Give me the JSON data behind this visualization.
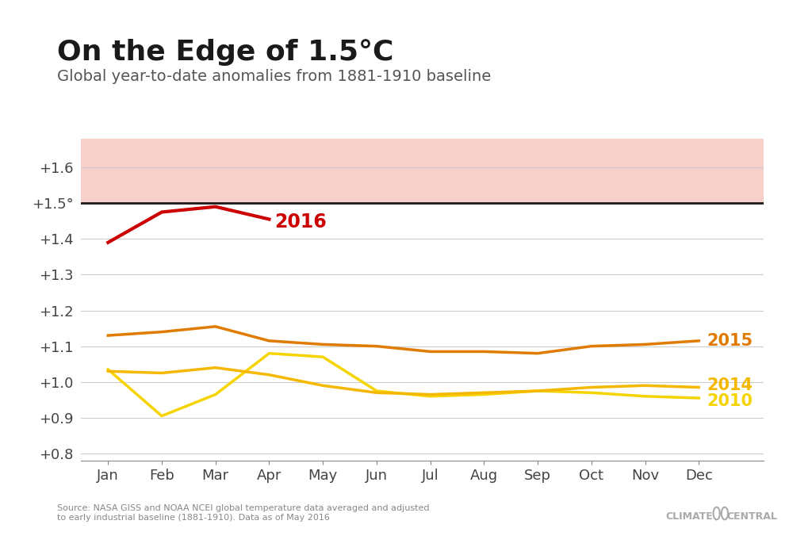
{
  "title": "On the Edge of 1.5°C",
  "subtitle": "Global year-to-date anomalies from 1881-1910 baseline",
  "source_text": "Source: NASA GISS and NOAA NCEI global temperature data averaged and adjusted\nto early industrial baseline (1881-1910). Data as of May 2016",
  "logo_text": "CLIMATE    CENTRAL",
  "months": [
    "Jan",
    "Feb",
    "Mar",
    "Apr",
    "May",
    "Jun",
    "Jul",
    "Aug",
    "Sep",
    "Oct",
    "Nov",
    "Dec"
  ],
  "threshold": 1.5,
  "ylim": [
    0.78,
    1.68
  ],
  "yticks": [
    0.8,
    0.9,
    1.0,
    1.1,
    1.2,
    1.3,
    1.4,
    1.5,
    1.6
  ],
  "ytick_labels": [
    "+0.8",
    "+0.9",
    "+1.0",
    "+1.1",
    "+1.2",
    "+1.3",
    "+1.4",
    "+1.5°",
    "+1.6"
  ],
  "series_2016": [
    1.39,
    1.475,
    1.49,
    1.455,
    null,
    null,
    null,
    null,
    null,
    null,
    null,
    null
  ],
  "series_2015": [
    1.13,
    1.14,
    1.155,
    1.115,
    1.105,
    1.1,
    1.085,
    1.085,
    1.08,
    1.1,
    1.105,
    1.115
  ],
  "series_2014": [
    1.03,
    1.025,
    1.04,
    1.02,
    0.99,
    0.97,
    0.965,
    0.97,
    0.975,
    0.985,
    0.99,
    0.985
  ],
  "series_2010": [
    1.035,
    0.905,
    0.965,
    1.08,
    1.07,
    0.975,
    0.96,
    0.965,
    0.975,
    0.97,
    0.96,
    0.955
  ],
  "color_2016": "#cc0000",
  "color_2015": "#e07b00",
  "color_2014": "#f5b800",
  "color_2010": "#f5d400",
  "label_2016": "2016",
  "label_2015": "2015",
  "label_2014": "2014",
  "label_2010": "2010",
  "shading_color": "#f7d0cc",
  "threshold_line_color": "#1a1a1a",
  "grid_color": "#cccccc",
  "bg_color": "#ffffff",
  "title_fontsize": 26,
  "subtitle_fontsize": 14,
  "tick_fontsize": 13,
  "label_fontsize": 15,
  "line_width": 2.5
}
